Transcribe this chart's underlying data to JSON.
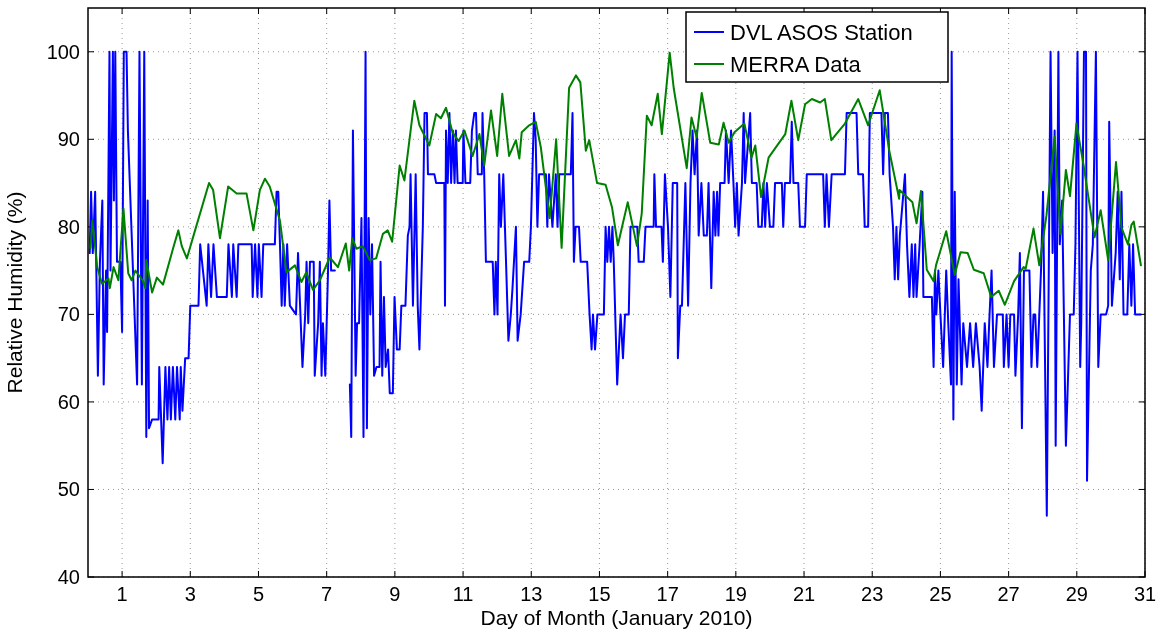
{
  "chart_data": {
    "type": "line",
    "xlabel": "Day of Month (January 2010)",
    "ylabel": "Relative Humidity (%)",
    "xlim": [
      0,
      31
    ],
    "ylim": [
      40,
      105
    ],
    "xticks": [
      1,
      3,
      5,
      7,
      9,
      11,
      13,
      15,
      17,
      19,
      21,
      23,
      25,
      27,
      29,
      31
    ],
    "yticks": [
      40,
      50,
      60,
      70,
      80,
      90,
      100
    ],
    "grid": true,
    "legend": "top right",
    "line_style": "solid",
    "marker": "none",
    "series": [
      {
        "name": "DVL ASOS Station",
        "color": "#0000ff",
        "x": [
          0.05,
          0.09,
          0.14,
          0.21,
          0.29,
          0.35,
          0.42,
          0.46,
          0.53,
          0.56,
          0.63,
          0.66,
          0.73,
          0.76,
          0.8,
          0.85,
          0.95,
          1.0,
          1.05,
          1.13,
          1.17,
          1.44,
          1.51,
          1.58,
          1.65,
          1.71,
          1.75,
          1.79,
          1.88,
          2.07,
          2.09,
          2.19,
          2.27,
          2.33,
          2.38,
          2.43,
          2.49,
          2.56,
          2.61,
          2.69,
          2.72,
          2.77,
          2.85,
          2.95,
          3.0,
          3.24,
          3.29,
          3.48,
          3.53,
          3.61,
          3.68,
          3.78,
          4.07,
          4.12,
          4.22,
          4.26,
          4.36,
          4.41,
          4.8,
          4.83,
          4.9,
          4.97,
          5.01,
          5.09,
          5.14,
          5.48,
          5.53,
          5.58,
          5.63,
          5.68,
          5.73,
          5.77,
          5.84,
          5.92,
          6.1,
          6.16,
          6.29,
          6.37,
          6.41,
          6.46,
          6.51,
          6.62,
          6.65,
          6.75,
          6.8,
          6.85,
          6.89,
          6.96,
          7.04,
          7.08,
          7.13,
          7.24,
          7.5,
          7.68,
          7.72,
          7.77,
          7.85,
          7.89,
          7.95,
          8.02,
          8.08,
          8.14,
          8.18,
          8.23,
          8.28,
          8.33,
          8.39,
          8.46,
          8.55,
          8.58,
          8.63,
          8.68,
          8.73,
          8.8,
          8.85,
          8.94,
          8.99,
          9.06,
          9.14,
          9.19,
          9.31,
          9.38,
          9.43,
          9.46,
          9.53,
          9.61,
          9.67,
          9.72,
          9.82,
          9.87,
          9.94,
          9.97,
          10.16,
          10.21,
          10.45,
          10.47,
          10.5,
          10.55,
          10.6,
          10.65,
          10.7,
          10.75,
          10.79,
          10.84,
          10.99,
          11.01,
          11.07,
          11.21,
          11.26,
          11.33,
          11.38,
          11.43,
          11.55,
          11.57,
          11.62,
          11.67,
          11.87,
          11.92,
          11.96,
          12.01,
          12.06,
          12.11,
          12.18,
          12.26,
          12.33,
          12.4,
          12.45,
          12.55,
          12.6,
          12.69,
          12.79,
          12.94,
          12.99,
          13.08,
          13.13,
          13.18,
          13.23,
          13.43,
          13.47,
          13.52,
          13.62,
          13.72,
          13.77,
          13.82,
          14.16,
          14.21,
          14.25,
          14.3,
          14.4,
          14.45,
          14.64,
          14.71,
          14.77,
          14.81,
          14.87,
          14.94,
          15.13,
          15.18,
          15.23,
          15.28,
          15.33,
          15.38,
          15.42,
          15.52,
          15.62,
          15.69,
          15.75,
          15.86,
          15.91,
          16.11,
          16.15,
          16.3,
          16.35,
          16.59,
          16.61,
          16.66,
          16.82,
          16.86,
          16.92,
          17.01,
          17.08,
          17.15,
          17.28,
          17.3,
          17.37,
          17.42,
          17.52,
          17.6,
          17.67,
          17.73,
          17.79,
          17.86,
          17.91,
          17.99,
          18.06,
          18.15,
          18.2,
          18.28,
          18.35,
          18.4,
          18.45,
          18.49,
          18.54,
          18.67,
          18.71,
          18.79,
          18.86,
          18.93,
          18.98,
          19.03,
          19.08,
          19.18,
          19.23,
          19.27,
          19.42,
          19.47,
          19.61,
          19.66,
          19.76,
          19.81,
          19.86,
          19.91,
          20.0,
          20.1,
          20.15,
          20.35,
          20.39,
          20.44,
          20.59,
          20.64,
          20.69,
          20.83,
          20.88,
          21.03,
          21.08,
          21.56,
          21.61,
          21.66,
          21.73,
          21.81,
          22.2,
          22.25,
          22.54,
          22.59,
          22.73,
          22.78,
          22.88,
          22.93,
          23.27,
          23.32,
          23.37,
          23.46,
          23.51,
          23.61,
          23.66,
          23.71,
          23.76,
          23.81,
          23.96,
          24.02,
          24.09,
          24.16,
          24.21,
          24.26,
          24.3,
          24.39,
          24.47,
          24.5,
          24.75,
          24.8,
          24.84,
          24.88,
          24.94,
          25.0,
          25.08,
          25.17,
          25.23,
          25.31,
          25.33,
          25.38,
          25.42,
          25.48,
          25.53,
          25.62,
          25.67,
          25.78,
          25.87,
          25.96,
          26.04,
          26.15,
          26.21,
          26.3,
          26.38,
          26.43,
          26.5,
          26.57,
          26.66,
          26.83,
          26.86,
          26.94,
          27.0,
          27.05,
          27.16,
          27.2,
          27.28,
          27.33,
          27.39,
          27.45,
          27.61,
          27.67,
          27.73,
          27.78,
          27.84,
          27.95,
          28.01,
          28.12,
          28.23,
          28.29,
          28.35,
          28.38,
          28.46,
          28.5,
          28.57,
          28.68,
          28.8,
          28.91,
          28.96,
          29.02,
          29.1,
          29.13,
          29.21,
          29.27,
          29.3,
          29.41,
          29.47,
          29.56,
          29.63,
          29.7,
          29.86,
          29.92,
          29.95,
          30.03,
          30.14,
          30.2,
          30.26,
          30.31,
          30.37,
          30.48,
          30.54,
          30.6,
          30.65,
          30.71,
          30.88
        ],
        "values": [
          77,
          84,
          77,
          84,
          63,
          76,
          83,
          62,
          75,
          68,
          100,
          75,
          100,
          83,
          100,
          76,
          76,
          68,
          100,
          100,
          91,
          62,
          100,
          62,
          100,
          56,
          83,
          57,
          58,
          58,
          64,
          53,
          64,
          58,
          64,
          58,
          64,
          58,
          64,
          58,
          64,
          59,
          65,
          65,
          71,
          71,
          78,
          71,
          78,
          72,
          78,
          72,
          72,
          78,
          72,
          78,
          72,
          78,
          78,
          72,
          78,
          72,
          78,
          72,
          78,
          78,
          84,
          84,
          78,
          71,
          78,
          71,
          78,
          71,
          70,
          77,
          64,
          70,
          76,
          69,
          76,
          76,
          63,
          69,
          76,
          63,
          69,
          63,
          75,
          83,
          75,
          75,
          null,
          62,
          56,
          91,
          63,
          69,
          69,
          81,
          56,
          100,
          57,
          81,
          70,
          78,
          63,
          64,
          64,
          76,
          63,
          72,
          64,
          66,
          61,
          61,
          72,
          66,
          66,
          71,
          71,
          79,
          80,
          86,
          71,
          86,
          71,
          66,
          80,
          93,
          93,
          86,
          86,
          85,
          85,
          71,
          91,
          85,
          93,
          85,
          91,
          85,
          91,
          85,
          85,
          91,
          85,
          85,
          91,
          93,
          93,
          86,
          86,
          93,
          86,
          76,
          76,
          70,
          76,
          70,
          86,
          80,
          86,
          76,
          67,
          70,
          73,
          80,
          67,
          70,
          76,
          76,
          80,
          93,
          90,
          80,
          86,
          86,
          80,
          86,
          80,
          86,
          80,
          86,
          86,
          93,
          76,
          80,
          80,
          76,
          76,
          70,
          66,
          70,
          66,
          70,
          70,
          80,
          76,
          80,
          76,
          80,
          76,
          62,
          70,
          65,
          70,
          70,
          80,
          80,
          76,
          76,
          80,
          80,
          86,
          80,
          80,
          76,
          86,
          80,
          72,
          85,
          85,
          65,
          71,
          71,
          85,
          71,
          85,
          91,
          86,
          91,
          79,
          85,
          79,
          79,
          85,
          73,
          84,
          79,
          84,
          79,
          85,
          85,
          91,
          85,
          91,
          85,
          80,
          85,
          79,
          85,
          93,
          85,
          93,
          85,
          85,
          80,
          80,
          85,
          80,
          85,
          80,
          80,
          85,
          85,
          80,
          85,
          85,
          92,
          85,
          85,
          80,
          80,
          86,
          86,
          80,
          86,
          80,
          86,
          86,
          93,
          93,
          86,
          86,
          80,
          80,
          93,
          93,
          86,
          93,
          93,
          86,
          80,
          74,
          80,
          74,
          79,
          86,
          78,
          72,
          78,
          72,
          78,
          72,
          78,
          84,
          72,
          72,
          64,
          75,
          70,
          75,
          70,
          64,
          75,
          69,
          62,
          100,
          58,
          84,
          62,
          74,
          62,
          69,
          64,
          69,
          64,
          69,
          64,
          59,
          69,
          64,
          69,
          75,
          64,
          70,
          70,
          64,
          70,
          64,
          70,
          70,
          63,
          70,
          77,
          57,
          75,
          75,
          64,
          70,
          70,
          64,
          75,
          84,
          47,
          100,
          77,
          91,
          55,
          100,
          78,
          83,
          55,
          70,
          70,
          78,
          100,
          64,
          69,
          100,
          100,
          51,
          75,
          78,
          100,
          64,
          70,
          70,
          71,
          92,
          71,
          77,
          84,
          74,
          84,
          70,
          70,
          78,
          71,
          78,
          70,
          70
        ]
      },
      {
        "name": "MERRA Data",
        "color": "#008000",
        "x": [
          0.07,
          0.13,
          0.27,
          0.41,
          0.6,
          0.64,
          0.75,
          0.89,
          1.04,
          1.18,
          1.28,
          1.39,
          1.6,
          1.68,
          1.71,
          1.88,
          2.02,
          2.2,
          2.5,
          2.65,
          2.75,
          2.9,
          3.14,
          3.55,
          3.67,
          3.87,
          4.11,
          4.36,
          4.65,
          4.85,
          5.04,
          5.19,
          5.33,
          5.63,
          5.82,
          6.07,
          6.26,
          6.4,
          6.6,
          6.8,
          7.09,
          7.33,
          7.56,
          7.66,
          7.75,
          7.87,
          8.06,
          8.26,
          8.45,
          8.65,
          8.79,
          8.92,
          9.14,
          9.28,
          9.57,
          9.72,
          10.01,
          10.21,
          10.35,
          10.5,
          10.69,
          10.87,
          11.04,
          11.28,
          11.48,
          11.62,
          11.82,
          12.0,
          12.15,
          12.35,
          12.55,
          12.65,
          12.72,
          12.94,
          13.13,
          13.28,
          13.54,
          13.73,
          13.89,
          14.11,
          14.31,
          14.44,
          14.6,
          14.7,
          14.93,
          15.18,
          15.37,
          15.54,
          15.64,
          15.83,
          16.1,
          16.24,
          16.39,
          16.53,
          16.71,
          16.83,
          17.06,
          17.18,
          17.56,
          17.7,
          17.85,
          18.0,
          18.25,
          18.5,
          18.64,
          18.79,
          18.96,
          19.25,
          19.46,
          19.57,
          19.74,
          19.96,
          20.25,
          20.45,
          20.63,
          20.83,
          21.03,
          21.23,
          21.47,
          21.61,
          21.8,
          22.2,
          22.59,
          22.88,
          23.22,
          23.5,
          23.79,
          23.8,
          24.18,
          24.3,
          24.43,
          24.6,
          24.8,
          24.87,
          25.17,
          25.42,
          25.59,
          25.8,
          25.98,
          26.27,
          26.49,
          26.71,
          26.89,
          27.16,
          27.44,
          27.5,
          27.73,
          27.9,
          28.11,
          28.35,
          28.52,
          28.68,
          28.8,
          28.99,
          29.2,
          29.52,
          29.7,
          29.92,
          30.15,
          30.31,
          30.5,
          30.6,
          30.67,
          30.88
        ],
        "values": [
          77.6,
          80.7,
          75.4,
          73.5,
          74.1,
          73,
          75.4,
          73.9,
          82.1,
          74.7,
          73.9,
          75,
          73.9,
          73,
          76.2,
          72.5,
          74.2,
          73.4,
          77.6,
          79.6,
          77.8,
          76.4,
          79.6,
          85,
          84.2,
          78.7,
          84.6,
          83.8,
          83.8,
          79.6,
          84.2,
          85.5,
          84.6,
          80.7,
          74.8,
          75.6,
          73.7,
          74.8,
          72.8,
          73.9,
          76.5,
          75.4,
          78.1,
          75,
          78.7,
          77.5,
          77.8,
          76.2,
          76.4,
          79.2,
          79.6,
          78.3,
          87,
          85.3,
          94.4,
          91.6,
          89.3,
          92.9,
          92.4,
          93.6,
          90.8,
          89.8,
          91,
          88.1,
          90.6,
          87,
          93.3,
          88.1,
          95.2,
          88.1,
          89.9,
          87.8,
          90.8,
          91.6,
          92,
          89.1,
          81,
          90,
          77.6,
          95.9,
          97.3,
          96.5,
          88.7,
          89.9,
          85,
          84.8,
          82.2,
          77.9,
          79.6,
          82.8,
          77.8,
          81.5,
          92.7,
          91.6,
          95.2,
          90.6,
          99.9,
          95.8,
          86.7,
          92.5,
          90.2,
          95.3,
          89.6,
          89.4,
          91.9,
          89.6,
          90.8,
          91.8,
          87.9,
          89.3,
          83.4,
          87.9,
          89.5,
          90.6,
          94.4,
          89.9,
          94,
          94.6,
          94.2,
          94.6,
          89.9,
          91.8,
          94.6,
          91.6,
          95.6,
          88.7,
          83.2,
          84.2,
          82.8,
          80.4,
          84.1,
          75.1,
          73.8,
          75.6,
          79.5,
          74.5,
          77.1,
          77,
          75.1,
          74.7,
          72,
          72.7,
          71.1,
          73.8,
          75.4,
          75.2,
          79.8,
          75.6,
          81.3,
          90.3,
          79.2,
          86.5,
          83.5,
          91.8,
          87,
          78.8,
          81.9,
          76.2,
          87.4,
          79.9,
          78,
          80.2,
          80.6,
          75.6
        ]
      }
    ]
  }
}
